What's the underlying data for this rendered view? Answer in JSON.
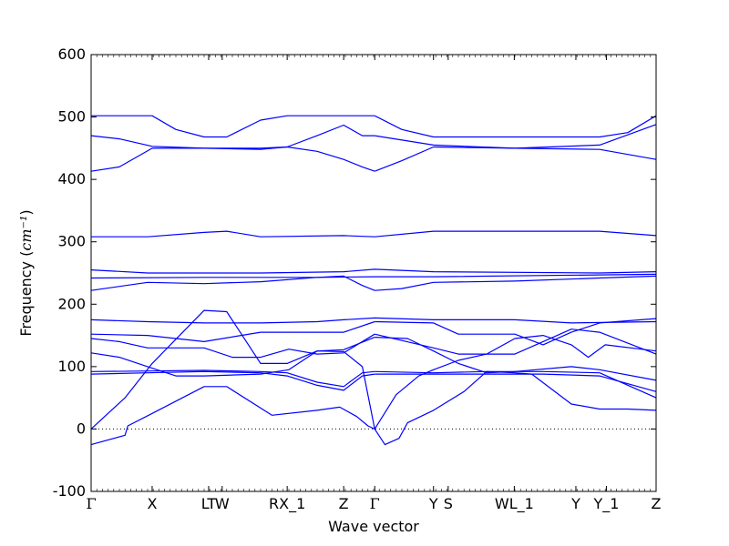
{
  "chart_data": {
    "type": "line",
    "xlabel": "Wave vector",
    "ylabel": "Frequency",
    "ylabel_unit": "cm⁻¹",
    "ylim": [
      -100,
      600
    ],
    "yticks": [
      -100,
      0,
      100,
      200,
      300,
      400,
      500,
      600
    ],
    "xticks": [
      {
        "label": "Γ",
        "x": 0.0
      },
      {
        "label": "X",
        "x": 0.108
      },
      {
        "label": "LT",
        "x": 0.208
      },
      {
        "label": "W",
        "x": 0.232
      },
      {
        "label": "RX_1",
        "x": 0.347
      },
      {
        "label": "Z",
        "x": 0.447
      },
      {
        "label": "Γ",
        "x": 0.502
      },
      {
        "label": "Y",
        "x": 0.606
      },
      {
        "label": "S",
        "x": 0.632
      },
      {
        "label": "WL_1",
        "x": 0.749
      },
      {
        "label": "Y",
        "x": 0.858
      },
      {
        "label": "Y_1",
        "x": 0.912
      },
      {
        "label": "Z",
        "x": 1.0
      }
    ],
    "line_color": "#0000ff",
    "zero_line": true,
    "series": [
      {
        "points": [
          [
            0,
            -25
          ],
          [
            0.06,
            -10
          ],
          [
            0.065,
            5
          ],
          [
            0.108,
            25
          ],
          [
            0.2,
            68
          ],
          [
            0.24,
            68
          ],
          [
            0.32,
            22
          ],
          [
            0.4,
            30
          ],
          [
            0.44,
            35
          ],
          [
            0.47,
            20
          ],
          [
            0.49,
            5
          ],
          [
            0.502,
            0
          ]
        ]
      },
      {
        "points": [
          [
            0.502,
            0
          ],
          [
            0.52,
            -25
          ],
          [
            0.545,
            -15
          ],
          [
            0.56,
            10
          ],
          [
            0.606,
            30
          ],
          [
            0.66,
            60
          ],
          [
            0.7,
            92
          ],
          [
            0.75,
            90
          ],
          [
            0.78,
            88
          ],
          [
            0.85,
            40
          ],
          [
            0.9,
            32
          ],
          [
            0.95,
            32
          ],
          [
            1.0,
            30
          ]
        ]
      },
      {
        "points": [
          [
            0,
            0
          ],
          [
            0.06,
            50
          ],
          [
            0.108,
            105
          ],
          [
            0.2,
            190
          ],
          [
            0.24,
            188
          ],
          [
            0.3,
            105
          ],
          [
            0.347,
            105
          ],
          [
            0.4,
            125
          ],
          [
            0.447,
            124
          ],
          [
            0.48,
            100
          ],
          [
            0.502,
            0
          ]
        ]
      },
      {
        "points": [
          [
            0.502,
            0
          ],
          [
            0.54,
            55
          ],
          [
            0.58,
            85
          ],
          [
            0.606,
            95
          ],
          [
            0.65,
            110
          ],
          [
            0.7,
            120
          ],
          [
            0.75,
            145
          ],
          [
            0.8,
            150
          ],
          [
            0.85,
            135
          ],
          [
            0.88,
            115
          ],
          [
            0.91,
            135
          ],
          [
            1.0,
            125
          ]
        ]
      },
      {
        "points": [
          [
            0,
            88
          ],
          [
            0.1,
            90
          ],
          [
            0.2,
            92
          ],
          [
            0.3,
            90
          ],
          [
            0.347,
            85
          ],
          [
            0.4,
            70
          ],
          [
            0.447,
            62
          ],
          [
            0.48,
            85
          ],
          [
            0.502,
            88
          ]
        ]
      },
      {
        "points": [
          [
            0.502,
            88
          ],
          [
            0.606,
            88
          ],
          [
            0.7,
            88
          ],
          [
            0.8,
            88
          ],
          [
            0.9,
            85
          ],
          [
            1.0,
            60
          ]
        ]
      },
      {
        "points": [
          [
            0,
            92
          ],
          [
            0.1,
            93
          ],
          [
            0.2,
            94
          ],
          [
            0.3,
            92
          ],
          [
            0.347,
            90
          ],
          [
            0.4,
            75
          ],
          [
            0.447,
            68
          ],
          [
            0.48,
            90
          ],
          [
            0.502,
            92
          ]
        ]
      },
      {
        "points": [
          [
            0.502,
            92
          ],
          [
            0.606,
            90
          ],
          [
            0.7,
            92
          ],
          [
            0.8,
            92
          ],
          [
            0.9,
            90
          ],
          [
            1.0,
            50
          ]
        ]
      },
      {
        "points": [
          [
            0,
            122
          ],
          [
            0.05,
            115
          ],
          [
            0.1,
            100
          ],
          [
            0.15,
            85
          ],
          [
            0.2,
            85
          ],
          [
            0.3,
            88
          ],
          [
            0.35,
            95
          ],
          [
            0.4,
            125
          ],
          [
            0.447,
            127
          ],
          [
            0.502,
            147
          ]
        ]
      },
      {
        "points": [
          [
            0.502,
            147
          ],
          [
            0.56,
            145
          ],
          [
            0.606,
            125
          ],
          [
            0.65,
            105
          ],
          [
            0.7,
            90
          ],
          [
            0.75,
            92
          ],
          [
            0.85,
            100
          ],
          [
            0.9,
            95
          ],
          [
            1.0,
            78
          ]
        ]
      },
      {
        "points": [
          [
            0,
            145
          ],
          [
            0.05,
            140
          ],
          [
            0.1,
            130
          ],
          [
            0.2,
            130
          ],
          [
            0.25,
            115
          ],
          [
            0.3,
            115
          ],
          [
            0.35,
            128
          ],
          [
            0.4,
            120
          ],
          [
            0.447,
            122
          ],
          [
            0.502,
            152
          ]
        ]
      },
      {
        "points": [
          [
            0.502,
            152
          ],
          [
            0.606,
            130
          ],
          [
            0.65,
            120
          ],
          [
            0.75,
            120
          ],
          [
            0.8,
            140
          ],
          [
            0.85,
            160
          ],
          [
            0.9,
            155
          ],
          [
            1.0,
            120
          ]
        ]
      },
      {
        "points": [
          [
            0,
            152
          ],
          [
            0.1,
            150
          ],
          [
            0.2,
            140
          ],
          [
            0.3,
            155
          ],
          [
            0.4,
            155
          ],
          [
            0.447,
            155
          ],
          [
            0.502,
            172
          ]
        ]
      },
      {
        "points": [
          [
            0.502,
            172
          ],
          [
            0.606,
            170
          ],
          [
            0.65,
            152
          ],
          [
            0.75,
            152
          ],
          [
            0.8,
            135
          ],
          [
            0.85,
            155
          ],
          [
            0.9,
            170
          ],
          [
            1.0,
            177
          ]
        ]
      },
      {
        "points": [
          [
            0,
            175
          ],
          [
            0.1,
            172
          ],
          [
            0.2,
            170
          ],
          [
            0.3,
            170
          ],
          [
            0.4,
            172
          ],
          [
            0.447,
            175
          ],
          [
            0.502,
            178
          ],
          [
            0.606,
            175
          ],
          [
            0.75,
            175
          ],
          [
            0.85,
            170
          ],
          [
            1.0,
            172
          ]
        ]
      },
      {
        "points": [
          [
            0,
            222
          ],
          [
            0.1,
            235
          ],
          [
            0.2,
            233
          ],
          [
            0.3,
            236
          ],
          [
            0.4,
            243
          ],
          [
            0.447,
            245
          ],
          [
            0.48,
            230
          ],
          [
            0.502,
            222
          ],
          [
            0.55,
            225
          ],
          [
            0.606,
            235
          ],
          [
            0.75,
            237
          ],
          [
            0.9,
            242
          ],
          [
            1.0,
            245
          ]
        ]
      },
      {
        "points": [
          [
            0,
            255
          ],
          [
            0.1,
            250
          ],
          [
            0.3,
            250
          ],
          [
            0.447,
            252
          ],
          [
            0.502,
            256
          ],
          [
            0.606,
            252
          ],
          [
            0.9,
            250
          ],
          [
            1.0,
            252
          ]
        ]
      },
      {
        "points": [
          [
            0,
            242
          ],
          [
            0.2,
            243
          ],
          [
            0.4,
            243
          ],
          [
            0.502,
            244
          ],
          [
            0.606,
            244
          ],
          [
            1.0,
            248
          ]
        ]
      },
      {
        "points": [
          [
            0,
            308
          ],
          [
            0.1,
            308
          ],
          [
            0.2,
            315
          ],
          [
            0.24,
            317
          ],
          [
            0.3,
            308
          ],
          [
            0.447,
            310
          ],
          [
            0.502,
            308
          ],
          [
            0.606,
            317
          ],
          [
            0.9,
            317
          ],
          [
            1.0,
            310
          ]
        ]
      },
      {
        "points": [
          [
            0,
            413
          ],
          [
            0.05,
            420
          ],
          [
            0.108,
            450
          ],
          [
            0.2,
            450
          ],
          [
            0.3,
            450
          ],
          [
            0.347,
            452
          ],
          [
            0.4,
            470
          ],
          [
            0.447,
            487
          ],
          [
            0.48,
            470
          ],
          [
            0.502,
            470
          ]
        ]
      },
      {
        "points": [
          [
            0.502,
            470
          ],
          [
            0.606,
            455
          ],
          [
            0.75,
            450
          ],
          [
            0.9,
            455
          ],
          [
            1.0,
            488
          ]
        ]
      },
      {
        "points": [
          [
            0,
            470
          ],
          [
            0.05,
            465
          ],
          [
            0.108,
            453
          ],
          [
            0.2,
            450
          ],
          [
            0.3,
            448
          ],
          [
            0.347,
            452
          ],
          [
            0.4,
            445
          ],
          [
            0.447,
            432
          ],
          [
            0.48,
            420
          ],
          [
            0.502,
            413
          ]
        ]
      },
      {
        "points": [
          [
            0.502,
            413
          ],
          [
            0.55,
            430
          ],
          [
            0.606,
            452
          ],
          [
            0.75,
            450
          ],
          [
            0.9,
            448
          ],
          [
            1.0,
            432
          ]
        ]
      },
      {
        "points": [
          [
            0,
            502
          ],
          [
            0.108,
            502
          ],
          [
            0.15,
            480
          ],
          [
            0.2,
            468
          ],
          [
            0.24,
            468
          ],
          [
            0.3,
            495
          ],
          [
            0.347,
            502
          ],
          [
            0.447,
            502
          ],
          [
            0.502,
            502
          ]
        ]
      },
      {
        "points": [
          [
            0.502,
            502
          ],
          [
            0.55,
            480
          ],
          [
            0.606,
            468
          ],
          [
            0.75,
            468
          ],
          [
            0.9,
            468
          ],
          [
            0.95,
            475
          ],
          [
            1.0,
            502
          ]
        ]
      }
    ]
  }
}
